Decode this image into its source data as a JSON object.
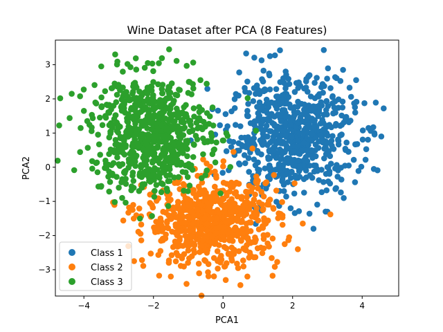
{
  "chart_data": {
    "type": "scatter",
    "title": "Wine Dataset after PCA (8 Features)",
    "xlabel": "PCA1",
    "ylabel": "PCA2",
    "xlim": [
      -4.82,
      5.05
    ],
    "ylim": [
      -3.77,
      3.72
    ],
    "x_ticks": [
      -4,
      -2,
      0,
      2,
      4
    ],
    "y_ticks": [
      -3,
      -2,
      -1,
      0,
      1,
      2,
      3
    ],
    "grid": false,
    "legend_position": "lower-left",
    "series": [
      {
        "name": "Class 1",
        "color": "#1f77b4",
        "center": [
          2.0,
          0.9
        ],
        "spread": [
          0.9,
          0.85
        ],
        "count": 700,
        "sample_points": [
          [
            4.55,
            0.9
          ],
          [
            4.35,
            1.0
          ],
          [
            2.6,
            -1.8
          ],
          [
            1.35,
            3.25
          ],
          [
            3.45,
            2.85
          ],
          [
            0.7,
            1.65
          ],
          [
            1.8,
            2.8
          ],
          [
            3.0,
            -1.3
          ],
          [
            0.5,
            1.2
          ],
          [
            3.8,
            1.6
          ]
        ]
      },
      {
        "name": "Class 2",
        "color": "#ff7f0e",
        "center": [
          -0.3,
          -1.6
        ],
        "spread": [
          0.95,
          0.65
        ],
        "count": 700,
        "sample_points": [
          [
            0.5,
            -3.45
          ],
          [
            -1.8,
            -2.45
          ],
          [
            -2.6,
            -1.25
          ],
          [
            2.15,
            -2.4
          ],
          [
            0.3,
            0.45
          ],
          [
            -1.5,
            -3.2
          ],
          [
            1.6,
            -1.35
          ],
          [
            0.7,
            -3.2
          ],
          [
            -2.1,
            -0.8
          ],
          [
            1.9,
            -2.05
          ]
        ]
      },
      {
        "name": "Class 3",
        "color": "#2ca02c",
        "center": [
          -2.1,
          1.0
        ],
        "spread": [
          0.85,
          0.85
        ],
        "count": 700,
        "sample_points": [
          [
            -4.35,
            2.15
          ],
          [
            -4.0,
            1.65
          ],
          [
            -3.5,
            2.95
          ],
          [
            -3.5,
            -0.55
          ],
          [
            -1.55,
            3.45
          ],
          [
            -0.65,
            2.55
          ],
          [
            -3.1,
            3.3
          ],
          [
            -2.9,
            -0.9
          ],
          [
            -0.3,
            1.75
          ],
          [
            -1.6,
            -0.7
          ]
        ]
      }
    ]
  }
}
